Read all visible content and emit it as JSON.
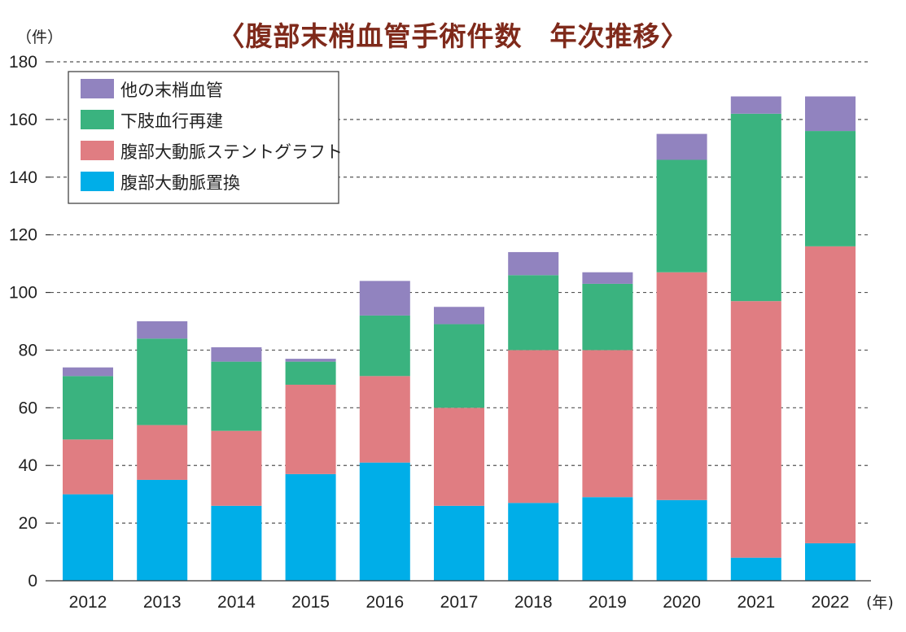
{
  "chart_data": {
    "type": "bar",
    "stacked": true,
    "title": "〈腹部末梢血管手術件数　年次推移〉",
    "y_unit": "（件）",
    "x_unit": "(年)",
    "ylim": [
      0,
      180
    ],
    "yticks": [
      0,
      20,
      40,
      60,
      80,
      100,
      120,
      140,
      160,
      180
    ],
    "grid": "horizontal dashed",
    "legend_position": "top-left",
    "categories": [
      "2012",
      "2013",
      "2014",
      "2015",
      "2016",
      "2017",
      "2018",
      "2019",
      "2020",
      "2021",
      "2022"
    ],
    "series": [
      {
        "name": "腹部大動脈置換",
        "color": "#00aee8",
        "values": [
          30,
          35,
          26,
          37,
          41,
          26,
          27,
          29,
          28,
          8,
          13
        ]
      },
      {
        "name": "腹部大動脈ステントグラフト",
        "color": "#e07d82",
        "values": [
          19,
          19,
          26,
          31,
          30,
          34,
          53,
          51,
          79,
          89,
          103
        ]
      },
      {
        "name": "下肢血行再建",
        "color": "#3ab37f",
        "values": [
          22,
          30,
          24,
          8,
          21,
          29,
          26,
          23,
          39,
          65,
          40
        ]
      },
      {
        "name": "他の末梢血管",
        "color": "#9183bf",
        "values": [
          3,
          6,
          5,
          1,
          12,
          6,
          8,
          4,
          9,
          6,
          12
        ]
      }
    ],
    "legend_order": [
      "他の末梢血管",
      "下肢血行再建",
      "腹部大動脈ステントグラフト",
      "腹部大動脈置換"
    ]
  }
}
